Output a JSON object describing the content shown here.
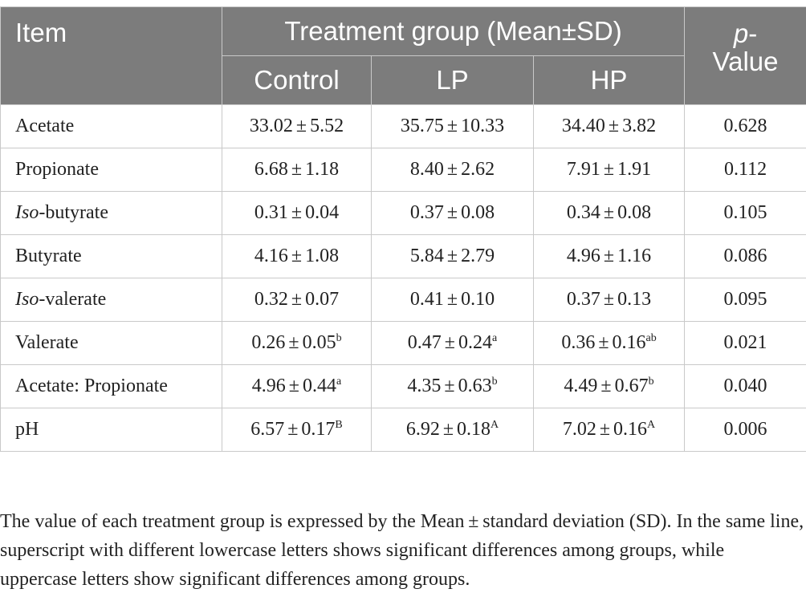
{
  "table": {
    "header": {
      "item": "Item",
      "group": "Treatment group (Mean±SD)",
      "p_italic": "p",
      "p_rest": "-\nValue",
      "sub": [
        "Control",
        "LP",
        "HP"
      ]
    },
    "rows": [
      {
        "label_italic": "",
        "label": "Acetate",
        "cells": [
          {
            "mean": "33.02",
            "sd": "5.52",
            "sup": ""
          },
          {
            "mean": "35.75",
            "sd": "10.33",
            "sup": ""
          },
          {
            "mean": "34.40",
            "sd": "3.82",
            "sup": ""
          }
        ],
        "p": "0.628"
      },
      {
        "label_italic": "",
        "label": "Propionate",
        "cells": [
          {
            "mean": "6.68",
            "sd": "1.18",
            "sup": ""
          },
          {
            "mean": "8.40",
            "sd": "2.62",
            "sup": ""
          },
          {
            "mean": "7.91",
            "sd": "1.91",
            "sup": ""
          }
        ],
        "p": "0.112"
      },
      {
        "label_italic": "Iso",
        "label": "-butyrate",
        "cells": [
          {
            "mean": "0.31",
            "sd": "0.04",
            "sup": ""
          },
          {
            "mean": "0.37",
            "sd": "0.08",
            "sup": ""
          },
          {
            "mean": "0.34",
            "sd": "0.08",
            "sup": ""
          }
        ],
        "p": "0.105"
      },
      {
        "label_italic": "",
        "label": "Butyrate",
        "cells": [
          {
            "mean": "4.16",
            "sd": "1.08",
            "sup": ""
          },
          {
            "mean": "5.84",
            "sd": "2.79",
            "sup": ""
          },
          {
            "mean": "4.96",
            "sd": "1.16",
            "sup": ""
          }
        ],
        "p": "0.086"
      },
      {
        "label_italic": "Iso",
        "label": "-valerate",
        "cells": [
          {
            "mean": "0.32",
            "sd": "0.07",
            "sup": ""
          },
          {
            "mean": "0.41",
            "sd": "0.10",
            "sup": ""
          },
          {
            "mean": "0.37",
            "sd": "0.13",
            "sup": ""
          }
        ],
        "p": "0.095"
      },
      {
        "label_italic": "",
        "label": "Valerate",
        "cells": [
          {
            "mean": "0.26",
            "sd": "0.05",
            "sup": "b"
          },
          {
            "mean": "0.47",
            "sd": "0.24",
            "sup": "a"
          },
          {
            "mean": "0.36",
            "sd": "0.16",
            "sup": "ab"
          }
        ],
        "p": "0.021"
      },
      {
        "label_italic": "",
        "label": "Acetate: Propionate",
        "cells": [
          {
            "mean": "4.96",
            "sd": "0.44",
            "sup": "a"
          },
          {
            "mean": "4.35",
            "sd": "0.63",
            "sup": "b"
          },
          {
            "mean": "4.49",
            "sd": "0.67",
            "sup": "b"
          }
        ],
        "p": "0.040"
      },
      {
        "label_italic": "",
        "label": "pH",
        "cells": [
          {
            "mean": "6.57",
            "sd": "0.17",
            "sup": "B"
          },
          {
            "mean": "6.92",
            "sd": "0.18",
            "sup": "A"
          },
          {
            "mean": "7.02",
            "sd": "0.16",
            "sup": "A"
          }
        ],
        "p": "0.006"
      }
    ]
  },
  "symbols": {
    "plus_minus": "±"
  },
  "note": "The value of each treatment group is expressed by the Mean ± standard deviation (SD). In the same line, superscript with different lowercase letters shows significant differences among groups, while uppercase letters show significant differences among groups."
}
